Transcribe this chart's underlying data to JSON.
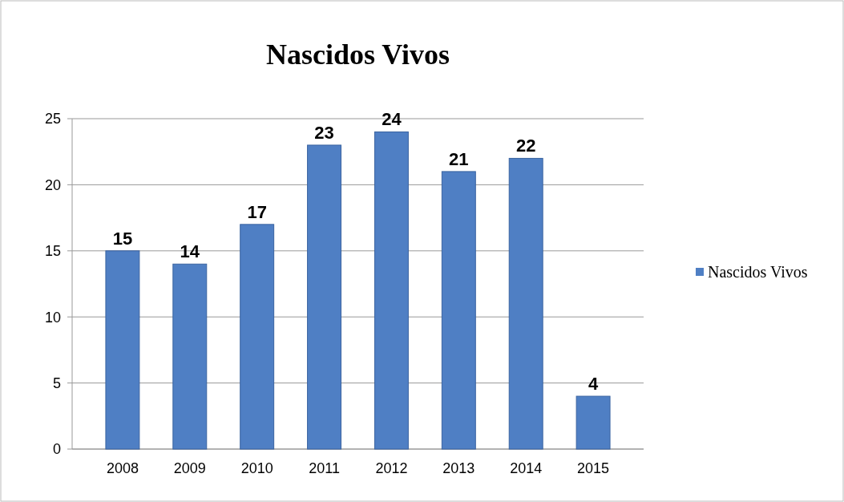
{
  "chart_data": {
    "type": "bar",
    "title": "Nascidos Vivos",
    "categories": [
      "2008",
      "2009",
      "2010",
      "2011",
      "2012",
      "2013",
      "2014",
      "2015"
    ],
    "series": [
      {
        "name": "Nascidos Vivos",
        "color": "#4f7fc4",
        "values": [
          15,
          14,
          17,
          23,
          24,
          21,
          22,
          4
        ]
      }
    ],
    "ylim": [
      0,
      25
    ],
    "yticks": [
      0,
      5,
      10,
      15,
      20,
      25
    ],
    "grid": "y",
    "legend": "right",
    "data_labels": true
  }
}
